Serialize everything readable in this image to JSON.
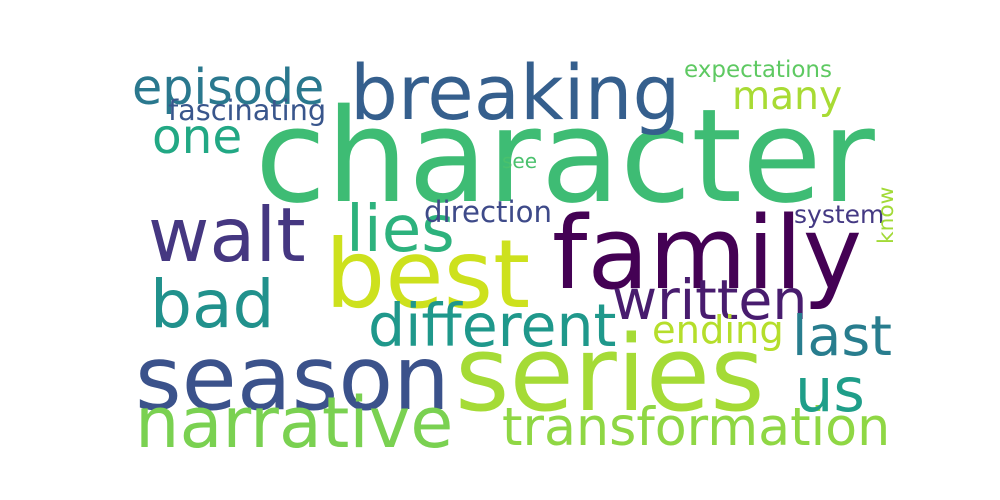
{
  "words": [
    {
      "text": "character",
      "color": "#3ebc74",
      "rotated": false
    },
    {
      "text": "family",
      "color": "#440154",
      "rotated": false
    },
    {
      "text": "season",
      "color": "#3b528b",
      "rotated": false
    },
    {
      "text": "series",
      "color": "#a5db36",
      "rotated": false
    },
    {
      "text": "best",
      "color": "#cde11d",
      "rotated": false
    },
    {
      "text": "breaking",
      "color": "#355f8d",
      "rotated": false
    },
    {
      "text": "walt",
      "color": "#453781",
      "rotated": false
    },
    {
      "text": "bad",
      "color": "#21918c",
      "rotated": false
    },
    {
      "text": "narrative",
      "color": "#7ad151",
      "rotated": false
    },
    {
      "text": "transformation",
      "color": "#8fd744",
      "rotated": false
    },
    {
      "text": "written",
      "color": "#481c6e",
      "rotated": false
    },
    {
      "text": "different",
      "color": "#1f988b",
      "rotated": false
    },
    {
      "text": "us",
      "color": "#1f9e89",
      "rotated": false
    },
    {
      "text": "last",
      "color": "#287d8e",
      "rotated": false
    },
    {
      "text": "episode",
      "color": "#2a788e",
      "rotated": false
    },
    {
      "text": "many",
      "color": "#a8db34",
      "rotated": false
    },
    {
      "text": "one",
      "color": "#22a884",
      "rotated": false
    },
    {
      "text": "lies",
      "color": "#2db27d",
      "rotated": false
    },
    {
      "text": "ending",
      "color": "#b5de2b",
      "rotated": false
    },
    {
      "text": "fascinating",
      "color": "#39568c",
      "rotated": false
    },
    {
      "text": "direction",
      "color": "#3e4a89",
      "rotated": false
    },
    {
      "text": "expectations",
      "color": "#5ec962",
      "rotated": false
    },
    {
      "text": "system",
      "color": "#443983",
      "rotated": false
    },
    {
      "text": "see",
      "color": "#4ac16d",
      "rotated": false
    },
    {
      "text": "know",
      "color": "#a2da37",
      "rotated": true
    }
  ]
}
